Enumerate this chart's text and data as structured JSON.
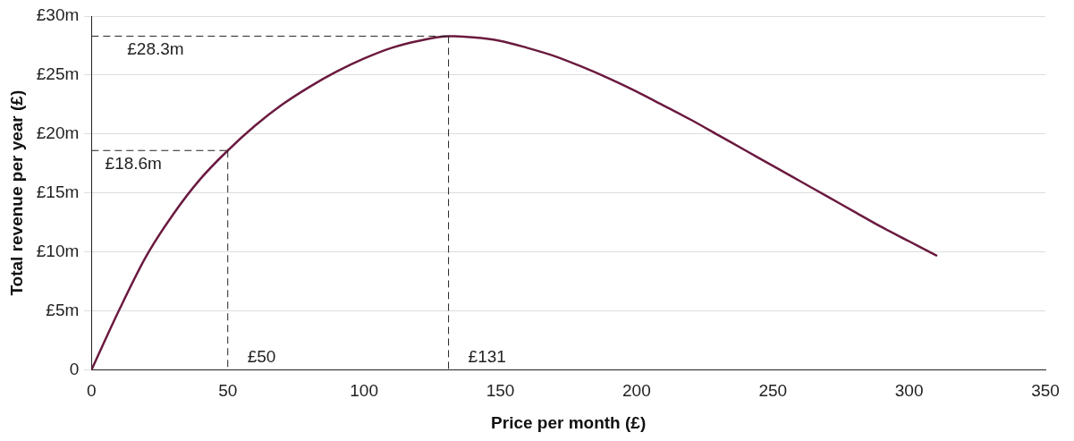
{
  "chart_data": {
    "type": "line",
    "xlabel": "Price per month (£)",
    "ylabel": "Total revenue per year (£)",
    "x": [
      0,
      10,
      20,
      30,
      40,
      50,
      60,
      70,
      80,
      90,
      100,
      110,
      120,
      131,
      140,
      150,
      160,
      170,
      180,
      190,
      200,
      210,
      220,
      230,
      240,
      250,
      260,
      270,
      280,
      290,
      300,
      310
    ],
    "series": [
      {
        "color": "#6b1a3f",
        "values": [
          0,
          5.0,
          9.6,
          13.2,
          16.2,
          18.6,
          20.7,
          22.5,
          24.0,
          25.3,
          26.4,
          27.3,
          27.9,
          28.3,
          28.2,
          27.9,
          27.3,
          26.6,
          25.7,
          24.7,
          23.6,
          22.4,
          21.2,
          19.9,
          18.6,
          17.3,
          16.0,
          14.7,
          13.4,
          12.1,
          10.9,
          9.7
        ]
      }
    ],
    "xlim": [
      0,
      350
    ],
    "xticks": [
      0,
      50,
      100,
      150,
      200,
      250,
      300,
      350
    ],
    "ylim": [
      0,
      30
    ],
    "yticks": [
      {
        "value": 0,
        "label": "0"
      },
      {
        "value": 5,
        "label": "£5m"
      },
      {
        "value": 10,
        "label": "£10m"
      },
      {
        "value": 15,
        "label": "£15m"
      },
      {
        "value": 20,
        "label": "£20m"
      },
      {
        "value": 25,
        "label": "£25m"
      },
      {
        "value": 30,
        "label": "£30m"
      }
    ],
    "grid": "y",
    "legend": false,
    "marker": "none",
    "line_style": "solid",
    "ref_lines": [
      {
        "axis": "y",
        "value": 18.6,
        "label": "£18.6m",
        "line_style": "dashed"
      },
      {
        "axis": "x",
        "value": 50,
        "label": "£50",
        "line_style": "dashed"
      },
      {
        "axis": "y",
        "value": 28.3,
        "label": "£28.3m",
        "line_style": "dashed"
      },
      {
        "axis": "x",
        "value": 131,
        "label": "£131",
        "line_style": "dashed"
      }
    ]
  }
}
